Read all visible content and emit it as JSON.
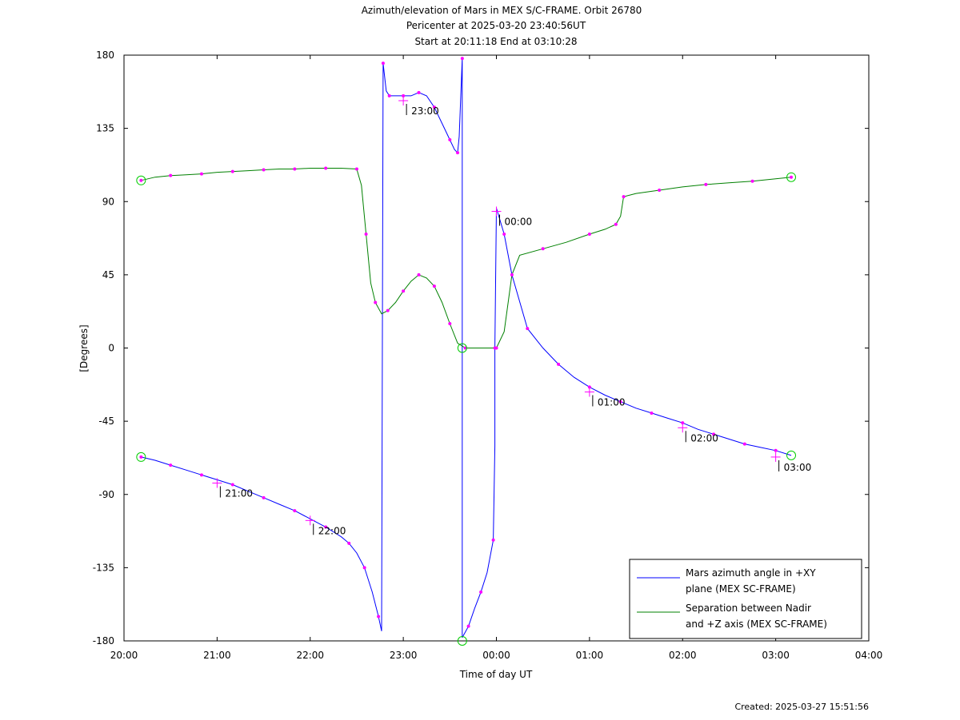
{
  "chart_data": {
    "type": "line",
    "title": [
      "Azimuth/elevation of Mars in MEX S/C-FRAME.  Orbit 26780",
      "Pericenter at 2025-03-20 23:40:56UT",
      "Start at 20:11:18 End at 03:10:28"
    ],
    "xlabel": "Time of day UT",
    "ylabel": "[Degrees]",
    "xlim": [
      "20:00",
      "04:00"
    ],
    "ylim": [
      -180,
      180
    ],
    "x_ticks": [
      "20:00",
      "21:00",
      "22:00",
      "23:00",
      "00:00",
      "01:00",
      "02:00",
      "03:00",
      "04:00"
    ],
    "y_ticks": [
      "180",
      "135",
      "90",
      "45",
      "0",
      "-45",
      "-90",
      "-135",
      "-180"
    ],
    "legend_position": "bottom-right",
    "grid": false,
    "series": [
      {
        "name": [
          "Mars azimuth angle in +XY",
          "plane (MEX SC-FRAME)"
        ],
        "color": "#0000ff",
        "points": [
          [
            "20:11",
            -67
          ],
          [
            "20:20",
            -69
          ],
          [
            "20:30",
            -72
          ],
          [
            "20:40",
            -75
          ],
          [
            "20:50",
            -78
          ],
          [
            "21:00",
            -81
          ],
          [
            "21:10",
            -84
          ],
          [
            "21:20",
            -88
          ],
          [
            "21:30",
            -92
          ],
          [
            "21:40",
            -96
          ],
          [
            "21:50",
            -100
          ],
          [
            "22:00",
            -105
          ],
          [
            "22:10",
            -110
          ],
          [
            "22:20",
            -116
          ],
          [
            "22:25",
            -120
          ],
          [
            "22:30",
            -126
          ],
          [
            "22:35",
            -135
          ],
          [
            "22:40",
            -150
          ],
          [
            "22:44",
            -165
          ],
          [
            "22:46",
            -174
          ],
          [
            "22:47",
            175
          ],
          [
            "22:49",
            158
          ],
          [
            "22:51",
            155
          ],
          [
            "22:55",
            155
          ],
          [
            "23:00",
            155
          ],
          [
            "23:05",
            155
          ],
          [
            "23:10",
            157
          ],
          [
            "23:15",
            155
          ],
          [
            "23:20",
            148
          ],
          [
            "23:25",
            138
          ],
          [
            "23:30",
            128
          ],
          [
            "23:33",
            122
          ],
          [
            "23:35",
            120
          ],
          [
            "23:36",
            130
          ],
          [
            "23:38",
            178
          ],
          [
            "23:38",
            -178
          ],
          [
            "23:42",
            -171
          ],
          [
            "23:46",
            -160
          ],
          [
            "23:50",
            -150
          ],
          [
            "23:54",
            -138
          ],
          [
            "23:58",
            -118
          ],
          [
            "23:59",
            -60
          ],
          [
            "23:59",
            0
          ],
          [
            "24:00",
            86
          ],
          [
            "24:05",
            70
          ],
          [
            "24:10",
            45
          ],
          [
            "24:20",
            12
          ],
          [
            "24:30",
            0
          ],
          [
            "24:40",
            -10
          ],
          [
            "24:50",
            -18
          ],
          [
            "25:00",
            -24
          ],
          [
            "25:10",
            -29
          ],
          [
            "25:20",
            -33
          ],
          [
            "25:30",
            -37
          ],
          [
            "25:40",
            -40
          ],
          [
            "25:50",
            -43
          ],
          [
            "26:00",
            -46
          ],
          [
            "26:10",
            -50
          ],
          [
            "26:20",
            -53
          ],
          [
            "26:30",
            -56
          ],
          [
            "26:40",
            -59
          ],
          [
            "26:50",
            -61
          ],
          [
            "27:00",
            -63
          ],
          [
            "27:10",
            -66
          ]
        ]
      },
      {
        "name": [
          "Separation between Nadir",
          "and +Z axis (MEX SC-FRAME)"
        ],
        "color": "#008000",
        "points": [
          [
            "20:11",
            103
          ],
          [
            "20:20",
            105
          ],
          [
            "20:30",
            106
          ],
          [
            "20:40",
            106.5
          ],
          [
            "20:50",
            107
          ],
          [
            "21:00",
            108
          ],
          [
            "21:10",
            108.5
          ],
          [
            "21:20",
            109
          ],
          [
            "21:30",
            109.5
          ],
          [
            "21:40",
            110
          ],
          [
            "21:50",
            110
          ],
          [
            "22:00",
            110.5
          ],
          [
            "22:10",
            110.5
          ],
          [
            "22:20",
            110.5
          ],
          [
            "22:30",
            110
          ],
          [
            "22:33",
            100
          ],
          [
            "22:36",
            70
          ],
          [
            "22:39",
            40
          ],
          [
            "22:42",
            28
          ],
          [
            "22:46",
            21
          ],
          [
            "22:50",
            23
          ],
          [
            "22:55",
            28
          ],
          [
            "23:00",
            35
          ],
          [
            "23:05",
            41
          ],
          [
            "23:10",
            45
          ],
          [
            "23:15",
            43
          ],
          [
            "23:20",
            38
          ],
          [
            "23:25",
            28
          ],
          [
            "23:30",
            15
          ],
          [
            "23:35",
            3
          ],
          [
            "23:40",
            0
          ],
          [
            "23:50",
            0
          ],
          [
            "24:00",
            0
          ],
          [
            "24:05",
            10
          ],
          [
            "24:10",
            45
          ],
          [
            "24:15",
            57
          ],
          [
            "24:30",
            61
          ],
          [
            "24:45",
            65
          ],
          [
            "25:00",
            70
          ],
          [
            "25:10",
            73
          ],
          [
            "25:17",
            76
          ],
          [
            "25:20",
            81
          ],
          [
            "25:22",
            93
          ],
          [
            "25:30",
            95
          ],
          [
            "25:45",
            97
          ],
          [
            "26:00",
            99
          ],
          [
            "26:15",
            100.5
          ],
          [
            "26:30",
            101.5
          ],
          [
            "26:45",
            102.5
          ],
          [
            "27:00",
            104
          ],
          [
            "27:10",
            105
          ]
        ]
      }
    ],
    "hour_labels": [
      {
        "text": "21:00",
        "x": "21:00",
        "y": -83
      },
      {
        "text": "22:00",
        "x": "22:00",
        "y": -106
      },
      {
        "text": "23:00",
        "x": "23:00",
        "y": 152
      },
      {
        "text": "00:00",
        "x": "24:00",
        "y": 84
      },
      {
        "text": "01:00",
        "x": "25:00",
        "y": -27
      },
      {
        "text": "02:00",
        "x": "26:00",
        "y": -49
      },
      {
        "text": "03:00",
        "x": "27:00",
        "y": -67
      }
    ],
    "circle_markers": [
      {
        "x": "20:11",
        "y": -67
      },
      {
        "x": "20:11",
        "y": 103
      },
      {
        "x": "23:38",
        "y": -180
      },
      {
        "x": "23:38",
        "y": 0
      },
      {
        "x": "27:10",
        "y": -66
      },
      {
        "x": "27:10",
        "y": 105
      }
    ],
    "created": "Created: 2025-03-27 15:51:56"
  }
}
